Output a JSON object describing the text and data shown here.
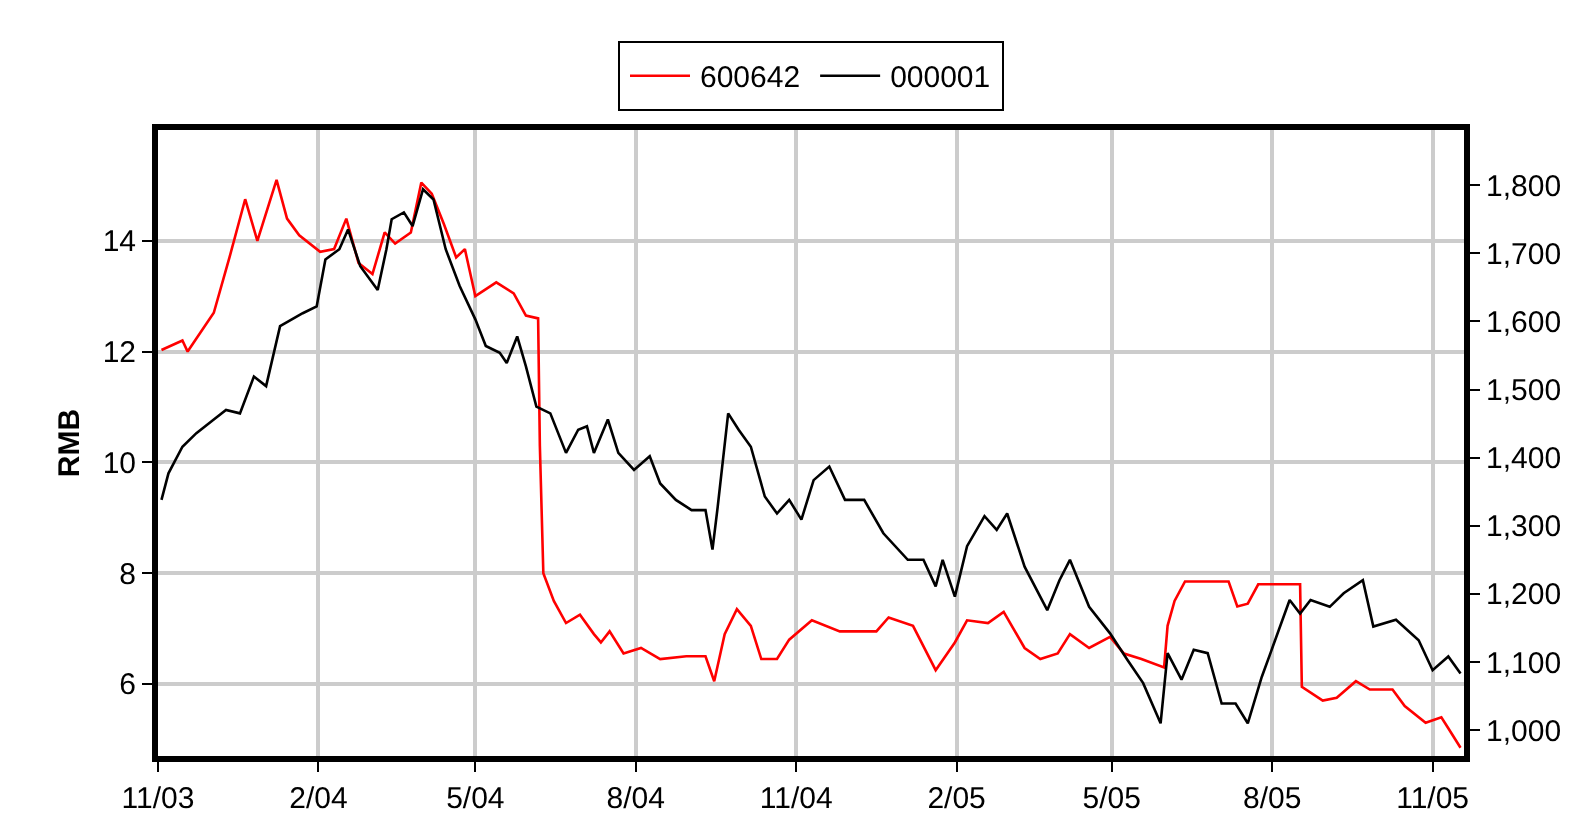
{
  "chart_data": {
    "type": "line",
    "ylabel": "RMB",
    "grid": true,
    "legend": "top",
    "marker": "none",
    "line_style": "solid",
    "xlim": [
      "2003-11-01",
      "2005-11-19"
    ],
    "xticks": [
      {
        "value": "2003-11-01",
        "label": "11/03"
      },
      {
        "value": "2004-02-01",
        "label": "2/04"
      },
      {
        "value": "2004-05-01",
        "label": "5/04"
      },
      {
        "value": "2004-08-01",
        "label": "8/04"
      },
      {
        "value": "2004-11-01",
        "label": "11/04"
      },
      {
        "value": "2005-02-01",
        "label": "2/05"
      },
      {
        "value": "2005-05-01",
        "label": "5/05"
      },
      {
        "value": "2005-08-01",
        "label": "8/05"
      },
      {
        "value": "2005-11-01",
        "label": "11/05"
      }
    ],
    "ylim": [
      4.7,
      16.0
    ],
    "yticks": [
      6,
      8,
      10,
      12,
      14
    ],
    "y2lim": [
      962,
      1881
    ],
    "y2ticks": [
      {
        "value": 1000,
        "label": "1,000"
      },
      {
        "value": 1100,
        "label": "1,100"
      },
      {
        "value": 1200,
        "label": "1,200"
      },
      {
        "value": 1300,
        "label": "1,300"
      },
      {
        "value": 1400,
        "label": "1,400"
      },
      {
        "value": 1500,
        "label": "1,500"
      },
      {
        "value": 1600,
        "label": "1,600"
      },
      {
        "value": 1700,
        "label": "1,700"
      },
      {
        "value": 1800,
        "label": "1,800"
      }
    ],
    "series": [
      {
        "name": "600642",
        "color": "#ff0000",
        "x": [
          "2003-11-03",
          "2003-11-15",
          "2003-11-18",
          "2003-12-03",
          "2003-12-12",
          "2003-12-21",
          "2003-12-28",
          "2004-01-08",
          "2004-01-14",
          "2004-01-21",
          "2004-02-02",
          "2004-02-10",
          "2004-02-17",
          "2004-02-24",
          "2004-03-03",
          "2004-03-10",
          "2004-03-16",
          "2004-03-25",
          "2004-03-31",
          "2004-04-06",
          "2004-04-13",
          "2004-04-20",
          "2004-04-25",
          "2004-05-01",
          "2004-05-13",
          "2004-05-23",
          "2004-05-30",
          "2004-06-06",
          "2004-06-07",
          "2004-06-09",
          "2004-06-15",
          "2004-06-22",
          "2004-06-30",
          "2004-07-08",
          "2004-07-12",
          "2004-07-17",
          "2004-07-25",
          "2004-08-04",
          "2004-08-15",
          "2004-08-30",
          "2004-09-10",
          "2004-09-15",
          "2004-09-21",
          "2004-09-28",
          "2004-10-06",
          "2004-10-12",
          "2004-10-21",
          "2004-10-28",
          "2004-11-10",
          "2004-11-26",
          "2004-12-17",
          "2004-12-24",
          "2005-01-07",
          "2005-01-20",
          "2005-01-31",
          "2005-02-07",
          "2005-02-19",
          "2005-02-28",
          "2005-03-12",
          "2005-03-21",
          "2005-03-31",
          "2005-04-07",
          "2005-04-18",
          "2005-04-30",
          "2005-05-08",
          "2005-05-18",
          "2005-05-31",
          "2005-06-02",
          "2005-06-06",
          "2005-06-12",
          "2005-07-07",
          "2005-07-12",
          "2005-07-18",
          "2005-07-24",
          "2005-08-17",
          "2005-08-18",
          "2005-08-30",
          "2005-09-07",
          "2005-09-18",
          "2005-09-26",
          "2005-10-09",
          "2005-10-16",
          "2005-10-28",
          "2005-11-06",
          "2005-11-10",
          "2005-11-17"
        ],
        "values": [
          12.03,
          12.2,
          12.0,
          12.7,
          13.7,
          14.75,
          14.0,
          15.1,
          14.4,
          14.1,
          13.8,
          13.85,
          14.4,
          13.6,
          13.4,
          14.15,
          13.95,
          14.15,
          15.05,
          14.85,
          14.3,
          13.7,
          13.85,
          13.0,
          13.25,
          13.05,
          12.65,
          12.6,
          10.3,
          8.0,
          7.5,
          7.1,
          7.25,
          6.9,
          6.75,
          6.95,
          6.55,
          6.65,
          6.45,
          6.5,
          6.5,
          6.05,
          6.9,
          7.35,
          7.05,
          6.45,
          6.45,
          6.8,
          7.15,
          6.95,
          6.95,
          7.2,
          7.05,
          6.25,
          6.75,
          7.15,
          7.1,
          7.3,
          6.65,
          6.45,
          6.55,
          6.9,
          6.65,
          6.85,
          6.55,
          6.45,
          6.3,
          7.05,
          7.5,
          7.85,
          7.85,
          7.4,
          7.45,
          7.8,
          7.8,
          5.95,
          5.7,
          5.75,
          6.05,
          5.9,
          5.9,
          5.6,
          5.3,
          5.4,
          5.2,
          4.85
        ]
      },
      {
        "name": "000001",
        "color": "#000000",
        "axis": "y2",
        "x": [
          "2003-11-03",
          "2003-11-07",
          "2003-11-15",
          "2003-11-23",
          "2003-12-03",
          "2003-12-10",
          "2003-12-18",
          "2003-12-26",
          "2004-01-02",
          "2004-01-10",
          "2004-01-23",
          "2004-01-31",
          "2004-02-05",
          "2004-02-13",
          "2004-02-18",
          "2004-02-25",
          "2004-03-06",
          "2004-03-11",
          "2004-03-14",
          "2004-03-21",
          "2004-03-26",
          "2004-04-01",
          "2004-04-07",
          "2004-04-14",
          "2004-04-22",
          "2004-05-01",
          "2004-05-07",
          "2004-05-15",
          "2004-05-19",
          "2004-05-25",
          "2004-05-30",
          "2004-06-05",
          "2004-06-13",
          "2004-06-22",
          "2004-06-29",
          "2004-07-04",
          "2004-07-08",
          "2004-07-16",
          "2004-07-22",
          "2004-07-31",
          "2004-08-09",
          "2004-08-15",
          "2004-08-24",
          "2004-09-02",
          "2004-09-10",
          "2004-09-14",
          "2004-09-17",
          "2004-09-23",
          "2004-09-29",
          "2004-10-06",
          "2004-10-14",
          "2004-10-21",
          "2004-10-28",
          "2004-11-04",
          "2004-11-11",
          "2004-11-20",
          "2004-11-29",
          "2004-12-10",
          "2004-12-21",
          "2005-01-04",
          "2005-01-13",
          "2005-01-20",
          "2005-01-24",
          "2005-01-31",
          "2005-02-07",
          "2005-02-17",
          "2005-02-24",
          "2005-03-02",
          "2005-03-12",
          "2005-03-25",
          "2005-04-01",
          "2005-04-07",
          "2005-04-18",
          "2005-04-30",
          "2005-05-10",
          "2005-05-19",
          "2005-05-29",
          "2005-06-02",
          "2005-06-10",
          "2005-06-17",
          "2005-06-25",
          "2005-07-03",
          "2005-07-11",
          "2005-07-18",
          "2005-07-26",
          "2005-07-31",
          "2005-08-11",
          "2005-08-17",
          "2005-08-23",
          "2005-09-03",
          "2005-09-11",
          "2005-09-22",
          "2005-09-28",
          "2005-10-11",
          "2005-10-24",
          "2005-11-01",
          "2005-11-10",
          "2005-11-17"
        ],
        "values": [
          1338,
          1377,
          1416,
          1436,
          1456,
          1470,
          1465,
          1519,
          1505,
          1593,
          1612,
          1622,
          1691,
          1706,
          1735,
          1681,
          1646,
          1706,
          1750,
          1760,
          1740,
          1794,
          1779,
          1706,
          1652,
          1603,
          1564,
          1554,
          1539,
          1578,
          1534,
          1475,
          1465,
          1407,
          1441,
          1446,
          1407,
          1456,
          1407,
          1382,
          1402,
          1362,
          1338,
          1323,
          1323,
          1265,
          1328,
          1465,
          1441,
          1416,
          1343,
          1318,
          1338,
          1309,
          1367,
          1387,
          1338,
          1338,
          1289,
          1250,
          1250,
          1211,
          1250,
          1196,
          1270,
          1314,
          1294,
          1318,
          1240,
          1176,
          1220,
          1250,
          1181,
          1142,
          1103,
          1069,
          1010,
          1113,
          1074,
          1118,
          1113,
          1039,
          1039,
          1010,
          1078,
          1113,
          1191,
          1171,
          1191,
          1181,
          1201,
          1220,
          1152,
          1162,
          1132,
          1088,
          1108,
          1083
        ]
      }
    ]
  }
}
